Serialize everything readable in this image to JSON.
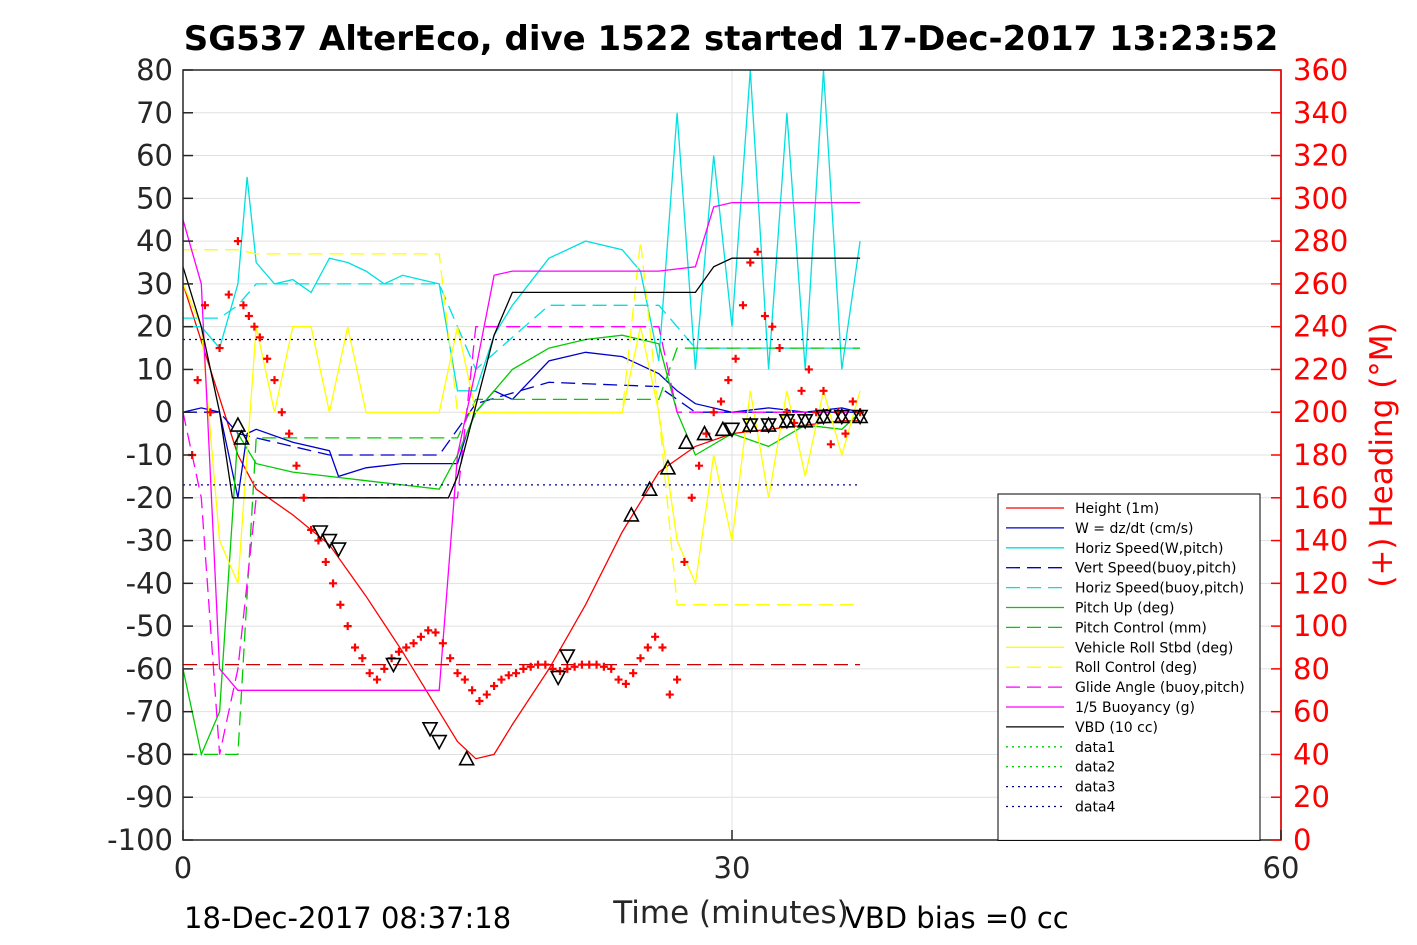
{
  "chart_data": {
    "type": "line",
    "title": "SG537 AlterEco, dive 1522 started 17-Dec-2017 13:23:52",
    "xlabel": "Time (minutes)",
    "ylabel_right": "(+) Heading (°M)",
    "xlim": [
      0,
      60
    ],
    "ylim": [
      -100,
      80
    ],
    "ylim_right": [
      0,
      360
    ],
    "x_ticks": [
      "0",
      "30",
      "60"
    ],
    "y_ticks": [
      "80",
      "70",
      "60",
      "50",
      "40",
      "30",
      "20",
      "10",
      "0",
      "-10",
      "-20",
      "-30",
      "-40",
      "-50",
      "-60",
      "-70",
      "-80",
      "-90",
      "-100"
    ],
    "y_ticks_right": [
      "360",
      "340",
      "320",
      "300",
      "280",
      "260",
      "240",
      "220",
      "200",
      "180",
      "160",
      "140",
      "120",
      "100",
      "80",
      "60",
      "40",
      "20",
      "0"
    ],
    "grid": true,
    "legend_position": "bottom-right",
    "footer_left": "18-Dec-2017 08:37:18",
    "footer_right": "VBD bias =0 cc",
    "colors": {
      "axis": "#262626",
      "right_axis": "#ff0000",
      "grid": "#e0e0e0"
    },
    "series": [
      {
        "name": "Height (1m)",
        "color": "#ff0000",
        "dash": "solid",
        "x": [
          0,
          1.5,
          3,
          4,
          6,
          8,
          10,
          12,
          14,
          15,
          16,
          17,
          18,
          20,
          22,
          24,
          26,
          28,
          30,
          32,
          34,
          36,
          37
        ],
        "y": [
          30,
          10,
          -10,
          -18,
          -24,
          -31,
          -43,
          -56,
          -70,
          -77,
          -81,
          -80,
          -73,
          -60,
          -45,
          -28,
          -14,
          -8,
          -5,
          -4,
          -3,
          -2,
          -2
        ]
      },
      {
        "name": "W = dz/dt (cm/s)",
        "color": "#0000cc",
        "dash": "solid",
        "x": [
          0,
          1,
          2,
          2.5,
          3,
          3.5,
          4,
          6,
          8,
          8.5,
          10,
          12,
          14,
          15,
          15.5,
          16,
          17,
          18,
          20,
          22,
          24,
          26,
          27,
          28,
          30,
          32,
          34,
          36,
          37
        ],
        "y": [
          0,
          1,
          0,
          -10,
          -20,
          -5,
          -4,
          -7,
          -9,
          -15,
          -13,
          -12,
          -12,
          -12,
          -5,
          0,
          5,
          3,
          12,
          14,
          13,
          9,
          5,
          2,
          0,
          1,
          0,
          1,
          0
        ]
      },
      {
        "name": "Horiz Speed(W,pitch)",
        "color": "#00e0e0",
        "dash": "solid",
        "x": [
          0,
          1,
          2,
          3,
          3.5,
          4,
          5,
          6,
          7,
          8,
          9,
          10,
          11,
          12,
          13,
          14,
          15,
          16,
          17,
          18,
          20,
          22,
          24,
          25,
          26,
          27,
          28,
          29,
          30,
          31,
          32,
          33,
          34,
          35,
          36,
          37
        ],
        "y": [
          20,
          20,
          15,
          30,
          55,
          35,
          30,
          31,
          28,
          36,
          35,
          33,
          30,
          32,
          31,
          30,
          5,
          5,
          18,
          25,
          36,
          40,
          38,
          33,
          12,
          70,
          10,
          60,
          20,
          80,
          10,
          70,
          10,
          80,
          10,
          40
        ]
      },
      {
        "name": "Vert Speed(buoy,pitch)",
        "color": "#0000cc",
        "dash": "dash",
        "x": [
          0,
          2,
          3,
          4,
          8,
          14,
          16,
          20,
          26,
          28,
          37
        ],
        "y": [
          0,
          0,
          -5,
          -6,
          -10,
          -10,
          2,
          7,
          6,
          0,
          0
        ]
      },
      {
        "name": "Horiz Speed(buoy,pitch)",
        "color": "#00e0e0",
        "dash": "dash",
        "x": [
          0,
          2,
          3,
          4,
          8,
          14,
          16,
          20,
          26,
          28,
          37
        ],
        "y": [
          22,
          22,
          25,
          30,
          30,
          30,
          10,
          25,
          25,
          15,
          15
        ]
      },
      {
        "name": "Pitch Up (deg)",
        "color": "#00cc00",
        "dash": "solid",
        "x": [
          0,
          1,
          2,
          3,
          4,
          6,
          8,
          10,
          12,
          14,
          15,
          16,
          18,
          20,
          22,
          24,
          26,
          27,
          28,
          30,
          32,
          34,
          36,
          37
        ],
        "y": [
          -60,
          -80,
          -70,
          -5,
          -12,
          -14,
          -15,
          -16,
          -17,
          -18,
          -10,
          0,
          10,
          15,
          17,
          18,
          16,
          0,
          -10,
          -5,
          -8,
          -3,
          -4,
          0
        ]
      },
      {
        "name": "Pitch Control (mm)",
        "color": "#00cc00",
        "dash": "dash",
        "x": [
          0,
          2,
          3,
          4,
          14,
          15,
          16,
          26,
          27,
          37
        ],
        "y": [
          -80,
          -80,
          -80,
          -6,
          -6,
          -6,
          3,
          3,
          15,
          15
        ]
      },
      {
        "name": "Vehicle Roll Stbd (deg)",
        "color": "#ffff00",
        "dash": "solid",
        "x": [
          0,
          1,
          2,
          3,
          4,
          5,
          6,
          7,
          8,
          9,
          10,
          12,
          14,
          15,
          16,
          18,
          20,
          22,
          24,
          25,
          26,
          27,
          28,
          29,
          30,
          31,
          32,
          33,
          34,
          35,
          36,
          37
        ],
        "y": [
          30,
          20,
          -30,
          -40,
          20,
          0,
          20,
          20,
          0,
          20,
          0,
          0,
          0,
          20,
          0,
          0,
          0,
          0,
          0,
          20,
          0,
          -30,
          -40,
          -10,
          -30,
          5,
          -20,
          5,
          -15,
          5,
          -10,
          5
        ]
      },
      {
        "name": "Roll Control (deg)",
        "color": "#ffff00",
        "dash": "dash",
        "x": [
          0,
          2,
          3,
          4,
          8,
          14,
          15,
          16,
          24,
          25,
          26,
          27,
          37
        ],
        "y": [
          38,
          38,
          38,
          37,
          37,
          37,
          0,
          0,
          0,
          40,
          0,
          -45,
          -45
        ]
      },
      {
        "name": "Glide Angle (buoy,pitch)",
        "color": "#ff00ff",
        "dash": "dash",
        "x": [
          0,
          1,
          2,
          3,
          4,
          8,
          14,
          15,
          16,
          26,
          27,
          37
        ],
        "y": [
          0,
          -20,
          -80,
          -60,
          -20,
          -20,
          -20,
          -20,
          20,
          20,
          0,
          0
        ]
      },
      {
        "name": "1/5 Buoyancy (g)",
        "color": "#ff00ff",
        "dash": "solid",
        "x": [
          0,
          1,
          2,
          3,
          4,
          8,
          14,
          15,
          16,
          17,
          18,
          20,
          22,
          24,
          26,
          28,
          29,
          30,
          32,
          37
        ],
        "y": [
          45,
          30,
          -60,
          -65,
          -65,
          -65,
          -65,
          -10,
          10,
          32,
          33,
          33,
          33,
          33,
          33,
          34,
          48,
          49,
          49,
          49
        ]
      },
      {
        "name": "VBD (10 cc)",
        "color": "#000000",
        "dash": "solid",
        "x": [
          0,
          1,
          2,
          2.7,
          4,
          8,
          12,
          14.5,
          15,
          17,
          18,
          20,
          22,
          24,
          26,
          28,
          29,
          30,
          32,
          37
        ],
        "y": [
          34,
          20,
          0,
          -20,
          -20,
          -20,
          -20,
          -20,
          -15,
          18,
          28,
          28,
          28,
          28,
          28,
          28,
          34,
          36,
          36,
          36
        ]
      },
      {
        "name": "data1",
        "color": "#00cc00",
        "dash": "dot",
        "x": [],
        "y": []
      },
      {
        "name": "data2",
        "color": "#00cc00",
        "dash": "dot",
        "x": [],
        "y": []
      },
      {
        "name": "data3",
        "color": "#000080",
        "dash": "dot",
        "x": [
          0,
          37
        ],
        "y": [
          17,
          17
        ]
      },
      {
        "name": "data4",
        "color": "#000080",
        "dash": "dot",
        "x": [
          0,
          37
        ],
        "y": [
          -17,
          -17
        ]
      }
    ],
    "heading_points": {
      "name": "(+) Heading (°M)",
      "color": "#ff0000",
      "x": [
        0.5,
        0.8,
        1.2,
        1.5,
        2.0,
        2.5,
        3.0,
        3.3,
        3.6,
        3.9,
        4.2,
        4.6,
        5.0,
        5.4,
        5.8,
        6.2,
        6.6,
        7.0,
        7.4,
        7.8,
        8.2,
        8.6,
        9.0,
        9.4,
        9.8,
        10.2,
        10.6,
        11.0,
        11.4,
        11.8,
        12.2,
        12.6,
        13.0,
        13.4,
        13.8,
        14.2,
        14.6,
        15.0,
        15.4,
        15.8,
        16.2,
        16.6,
        17.0,
        17.4,
        17.8,
        18.2,
        18.6,
        19.0,
        19.4,
        19.8,
        20.2,
        20.6,
        21.0,
        21.4,
        21.8,
        22.2,
        22.6,
        23.0,
        23.4,
        23.8,
        24.2,
        24.6,
        25.0,
        25.4,
        25.8,
        26.2,
        26.6,
        27.0,
        27.4,
        27.8,
        28.2,
        28.6,
        29.0,
        29.4,
        29.8,
        30.2,
        30.6,
        31.0,
        31.4,
        31.8,
        32.2,
        32.6,
        33.0,
        33.4,
        33.8,
        34.2,
        34.6,
        35.0,
        35.4,
        35.8,
        36.2,
        36.6,
        37.0
      ],
      "y": [
        180,
        215,
        250,
        200,
        230,
        255,
        280,
        250,
        245,
        240,
        235,
        225,
        215,
        200,
        190,
        175,
        160,
        145,
        140,
        130,
        120,
        110,
        100,
        90,
        85,
        78,
        75,
        80,
        85,
        88,
        90,
        92,
        95,
        98,
        97,
        92,
        85,
        78,
        75,
        70,
        65,
        68,
        72,
        75,
        77,
        78,
        80,
        81,
        82,
        82,
        80,
        79,
        80,
        81,
        82,
        82,
        82,
        81,
        80,
        75,
        73,
        78,
        85,
        90,
        95,
        90,
        68,
        75,
        130,
        160,
        175,
        190,
        200,
        205,
        215,
        225,
        250,
        270,
        275,
        245,
        240,
        230,
        200,
        195,
        210,
        220,
        200,
        210,
        185,
        200,
        190,
        205,
        200
      ]
    },
    "markers": {
      "up_triangle_x": [
        3.0,
        3.2,
        15.5,
        24.5,
        25.5,
        26.5,
        27.5,
        28.5,
        29.5,
        31,
        32,
        33,
        34,
        35,
        36,
        37
      ],
      "up_triangle_y": [
        -3,
        -6,
        -81,
        -24,
        -18,
        -13,
        -7,
        -5,
        -4,
        -3,
        -3,
        -2,
        -2,
        -1,
        -1,
        -1
      ],
      "down_triangle_x": [
        7.5,
        8.0,
        8.5,
        11.5,
        13.5,
        14.0,
        20.5,
        21.0,
        30,
        31,
        32,
        33,
        34,
        35,
        36,
        37
      ],
      "down_triangle_y": [
        -28,
        -30,
        -32,
        -59,
        -74,
        -77,
        -62,
        -57,
        -4,
        -3,
        -3,
        -2,
        -2,
        -1,
        -1,
        -1
      ]
    }
  }
}
